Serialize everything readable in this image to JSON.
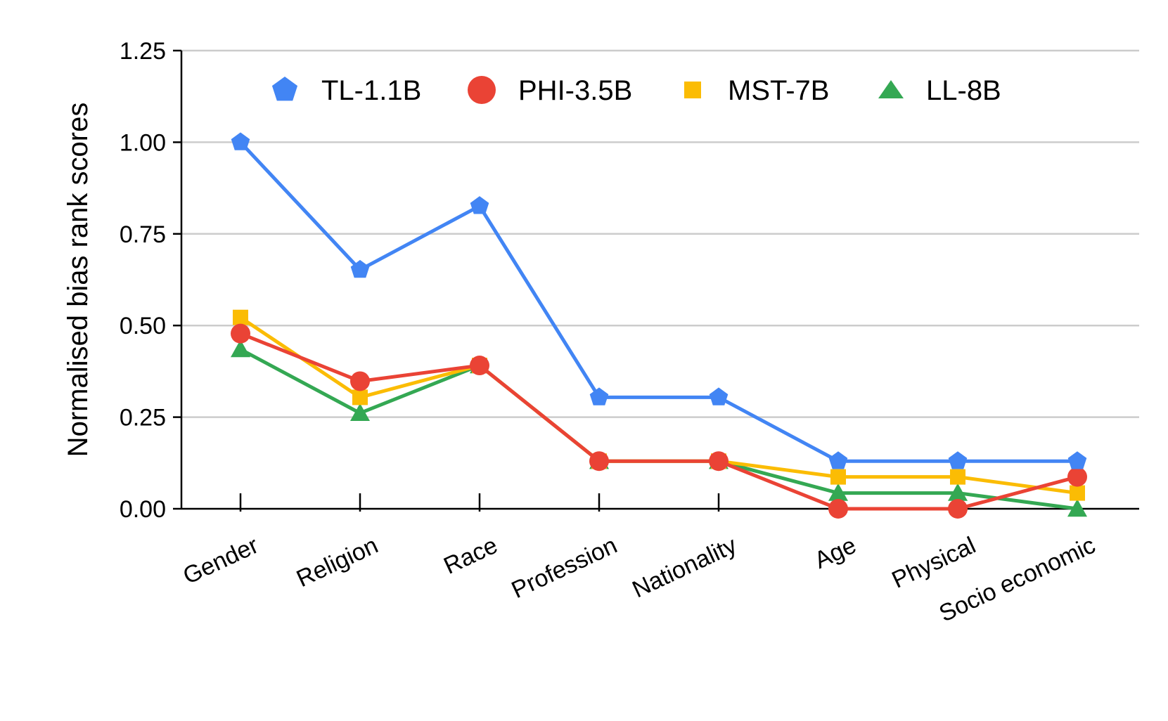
{
  "chart_data": {
    "type": "line",
    "title": "",
    "xlabel": "",
    "ylabel": "Normalised bias rank scores",
    "categories": [
      "Gender",
      "Religion",
      "Race",
      "Profession",
      "Nationality",
      "Age",
      "Physical",
      "Socio economic"
    ],
    "ylim": [
      0,
      1.25
    ],
    "yticks": [
      "0.00",
      "0.25",
      "0.50",
      "0.75",
      "1.00",
      "1.25"
    ],
    "ytick_values": [
      0,
      0.25,
      0.5,
      0.75,
      1.0,
      1.25
    ],
    "grid": true,
    "legend_position": "top",
    "series": [
      {
        "name": "TL-1.1B",
        "color": "#4285F4",
        "marker": "pentagon",
        "values": [
          1.0,
          0.652,
          0.826,
          0.304,
          0.304,
          0.13,
          0.13,
          0.13
        ]
      },
      {
        "name": "PHI-3.5B",
        "color": "#EA4335",
        "marker": "circle",
        "values": [
          0.478,
          0.348,
          0.391,
          0.13,
          0.13,
          0.0,
          0.0,
          0.087
        ]
      },
      {
        "name": "MST-7B",
        "color": "#FBBC04",
        "marker": "square",
        "values": [
          0.522,
          0.304,
          0.391,
          0.13,
          0.13,
          0.087,
          0.087,
          0.043
        ]
      },
      {
        "name": "LL-8B",
        "color": "#34A853",
        "marker": "triangle",
        "values": [
          0.435,
          0.261,
          0.391,
          0.13,
          0.13,
          0.043,
          0.043,
          0.0
        ]
      }
    ]
  }
}
